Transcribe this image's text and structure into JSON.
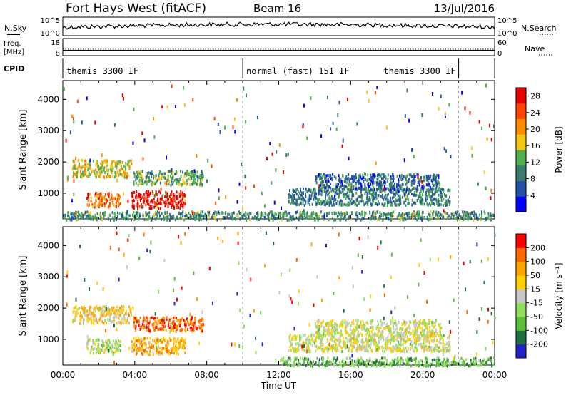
{
  "header": {
    "title": "Fort Hays West (fitACF)",
    "beam": "Beam 16",
    "date": "13/Jul/2016"
  },
  "panels": {
    "nsky": {
      "label": "N.Sky",
      "tick_top": "10^5",
      "tick_bottom": "10^0",
      "right_label": "N.Search",
      "right_tick_top": "10^5",
      "right_tick_bottom": "10^0"
    },
    "freq": {
      "label_line1": "Freq.",
      "label_line2": "[MHz]",
      "tick_top": "18",
      "tick_bottom": "8",
      "right_label": "Nave",
      "right_tick_top": "60",
      "right_tick_bottom": "0"
    },
    "cpid": {
      "label": "CPID",
      "segments": [
        {
          "start": 0,
          "end": 10,
          "text": "themis 3300 IF",
          "align": "left"
        },
        {
          "start": 10,
          "end": 22,
          "text": "normal (fast) 151 IF",
          "align": "left"
        },
        {
          "start": 10,
          "end": 22,
          "text": "themis 3300 IF",
          "align": "right"
        }
      ]
    }
  },
  "chart_data": [
    {
      "type": "heatmap",
      "title": "",
      "variable": "Power",
      "colorbar_label": "Power [dB]",
      "xlabel": "",
      "ylabel": "Slant Range [km]",
      "xlim": [
        0,
        24
      ],
      "ylim": [
        180,
        4600
      ],
      "x_ticks": [],
      "y_ticks": [
        1000,
        2000,
        3000,
        4000
      ],
      "colorbar_ticks": [
        "4",
        "8",
        "12",
        "16",
        "20",
        "24",
        "28"
      ],
      "colorbar_range": [
        0,
        30
      ],
      "colors": [
        "#0000ff",
        "#2252a6",
        "#3a7d6f",
        "#4fb04f",
        "#f0c814",
        "#ff8c00",
        "#ff4500",
        "#e60000"
      ],
      "features": [
        {
          "t0": 0.5,
          "t1": 3.8,
          "r0": 1550,
          "r1": 2100,
          "level": 0.55
        },
        {
          "t0": 1.3,
          "t1": 3.2,
          "r0": 600,
          "r1": 1050,
          "level": 0.75
        },
        {
          "t0": 3.8,
          "t1": 6.8,
          "r0": 550,
          "r1": 1100,
          "level": 0.95
        },
        {
          "t0": 3.9,
          "t1": 7.8,
          "r0": 1300,
          "r1": 1750,
          "level": 0.4
        },
        {
          "t0": 12.5,
          "t1": 21.5,
          "r0": 650,
          "r1": 1200,
          "level": 0.3
        },
        {
          "t0": 14.0,
          "t1": 21.0,
          "r0": 1150,
          "r1": 1650,
          "level": 0.25
        },
        {
          "t0": 0.0,
          "t1": 24.0,
          "r0": 180,
          "r1": 450,
          "level": 0.35
        }
      ]
    },
    {
      "type": "heatmap",
      "title": "",
      "variable": "Velocity",
      "colorbar_label": "Velocity [m s⁻¹]",
      "xlabel": "Time UT",
      "ylabel": "Slant Range [km]",
      "xlim": [
        0,
        24
      ],
      "ylim": [
        180,
        4600
      ],
      "x_ticks": [
        "00:00",
        "04:00",
        "08:00",
        "12:00",
        "16:00",
        "20:00",
        "00:00"
      ],
      "y_ticks": [
        1000,
        2000,
        3000,
        4000
      ],
      "colorbar_ticks": [
        "200",
        "100",
        "50",
        "15",
        "-15",
        "-50",
        "-100",
        "-200"
      ],
      "colorbar_range": [
        -250,
        250
      ],
      "colors": [
        "#2222cc",
        "#1f6f3f",
        "#5cbf3a",
        "#8ee05a",
        "#c8c8c8",
        "#ffd200",
        "#ffa500",
        "#ff6a00",
        "#ff0000"
      ],
      "features": [
        {
          "t0": 0.5,
          "t1": 3.8,
          "r0": 1550,
          "r1": 2100,
          "level": 0.6
        },
        {
          "t0": 1.3,
          "t1": 3.2,
          "r0": 600,
          "r1": 1050,
          "level": 0.45
        },
        {
          "t0": 3.8,
          "t1": 6.8,
          "r0": 550,
          "r1": 1100,
          "level": 0.7
        },
        {
          "t0": 3.9,
          "t1": 7.8,
          "r0": 1300,
          "r1": 1750,
          "level": 0.85
        },
        {
          "t0": 12.5,
          "t1": 21.5,
          "r0": 650,
          "r1": 1200,
          "level": 0.5
        },
        {
          "t0": 14.0,
          "t1": 21.0,
          "r0": 1150,
          "r1": 1650,
          "level": 0.5
        },
        {
          "t0": 12.0,
          "t1": 24.0,
          "r0": 180,
          "r1": 450,
          "level": 0.3
        }
      ]
    }
  ]
}
